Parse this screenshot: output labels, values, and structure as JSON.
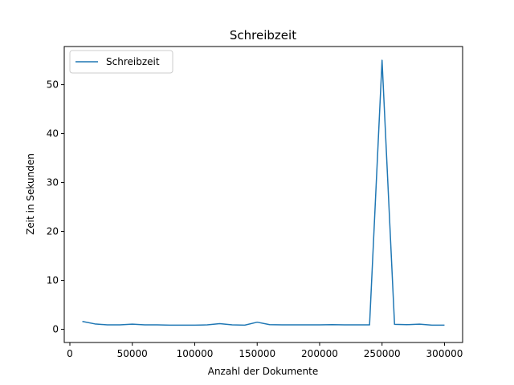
{
  "chart_data": {
    "type": "line",
    "title": "Schreibzeit",
    "xlabel": "Anzahl der Dokumente",
    "ylabel": "Zeit in Sekunden",
    "xlim": [
      -4500,
      314500
    ],
    "ylim": [
      -2.7,
      57.8
    ],
    "xticks": [
      0,
      50000,
      100000,
      150000,
      200000,
      250000,
      300000
    ],
    "yticks": [
      0,
      10,
      20,
      30,
      40,
      50
    ],
    "grid": false,
    "legend": "upper-left",
    "series": [
      {
        "name": "Schreibzeit",
        "color": "#1f77b4",
        "x": [
          10000,
          20000,
          30000,
          40000,
          50000,
          60000,
          70000,
          80000,
          90000,
          100000,
          110000,
          120000,
          130000,
          140000,
          150000,
          160000,
          170000,
          180000,
          190000,
          200000,
          210000,
          220000,
          230000,
          240000,
          250000,
          260000,
          270000,
          280000,
          290000,
          300000
        ],
        "y": [
          1.6,
          1.1,
          0.9,
          0.9,
          1.05,
          0.9,
          0.9,
          0.85,
          0.85,
          0.85,
          0.9,
          1.15,
          0.9,
          0.85,
          1.45,
          0.95,
          0.9,
          0.9,
          0.9,
          0.9,
          0.95,
          0.9,
          0.9,
          0.9,
          55.0,
          1.0,
          0.95,
          1.05,
          0.85,
          0.85
        ]
      }
    ]
  }
}
